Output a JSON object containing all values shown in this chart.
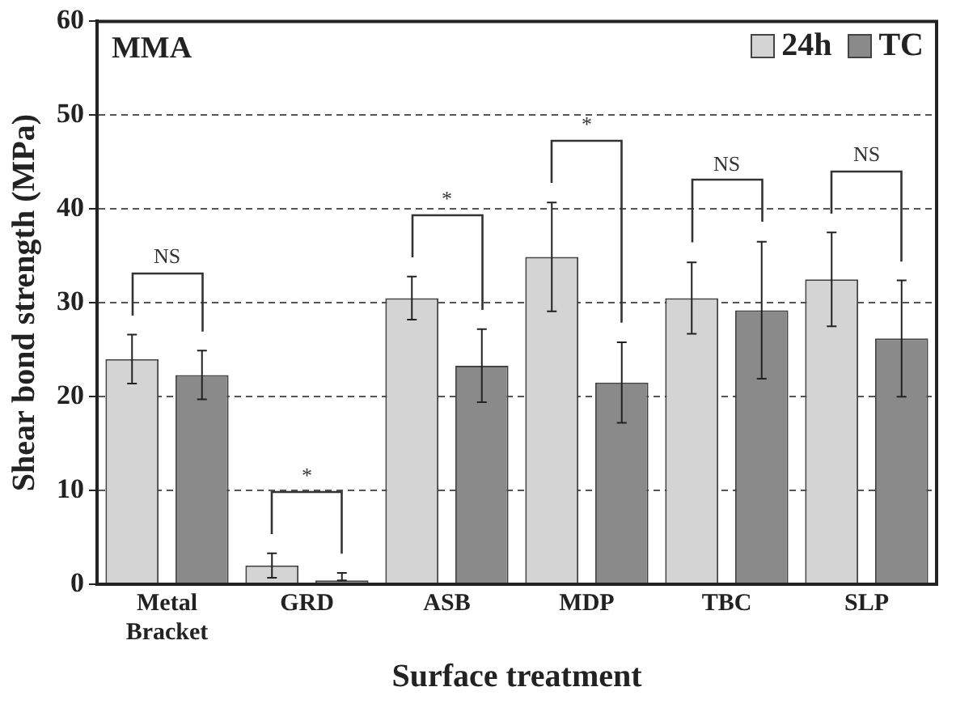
{
  "chart_data": {
    "type": "bar",
    "xlabel": "Surface treatment",
    "ylabel": "Shear bond strength (MPa)",
    "categories": [
      "Metal Bracket",
      "GRD",
      "ASB",
      "MDP",
      "TBC",
      "SLP"
    ],
    "series": [
      {
        "name": "24h",
        "color": "#d4d4d4",
        "values": [
          24,
          2,
          30.5,
          34.9,
          30.5,
          32.5
        ],
        "errors": [
          2.6,
          1.3,
          2.3,
          5.8,
          3.8,
          5
        ]
      },
      {
        "name": "TC",
        "color": "#8a8a8a",
        "values": [
          22.3,
          0.4,
          23.3,
          21.5,
          29.2,
          26.2
        ],
        "errors": [
          2.6,
          [
            0.4,
            1.2
          ],
          3.9,
          4.3,
          7.3,
          6.2
        ]
      }
    ],
    "ylim": [
      0,
      60
    ],
    "yticks": [
      0,
      10,
      20,
      30,
      40,
      50,
      60
    ],
    "grid": "y",
    "legend": "top right",
    "annotations": [
      "MMA",
      "NS",
      "*",
      "*",
      "*",
      "NS",
      "NS"
    ]
  }
}
